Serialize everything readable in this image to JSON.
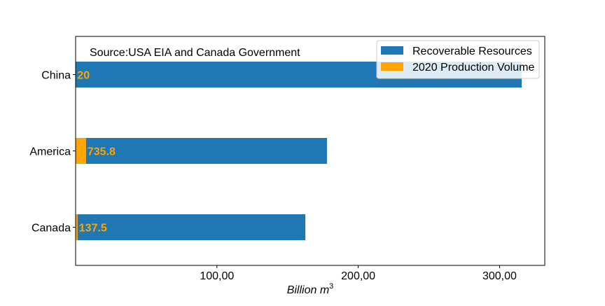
{
  "chart_data": {
    "type": "bar",
    "orientation": "horizontal",
    "stacked": true,
    "categories": [
      "Canada",
      "America",
      "China"
    ],
    "series": [
      {
        "name": "2020 Production Volume",
        "values": [
          1375,
          7358,
          200
        ],
        "color": "#ffa500"
      },
      {
        "name": "Recoverable Resources",
        "values": [
          161200,
          170500,
          315500
        ],
        "color": "#1f77b4"
      }
    ],
    "data_labels": [
      "137.5",
      "735.8",
      "20"
    ],
    "data_label_color": "#ffa500",
    "xlabel_text": "Billion ",
    "xlabel_math": "m",
    "xlabel_sup": "3",
    "ylabel": "",
    "xlim": [
      0,
      332000
    ],
    "xticks": [
      100000,
      200000,
      300000
    ],
    "xtick_labels": [
      "100,00",
      "200,00",
      "300,00"
    ],
    "annotation": "Source:USA EIA and Canada Government",
    "legend": {
      "placement": "top-right",
      "entries": [
        {
          "label": "Recoverable Resources",
          "color": "#1f77b4"
        },
        {
          "label": "2020 Production Volume",
          "color": "#ffa500"
        }
      ]
    },
    "grid": false
  }
}
